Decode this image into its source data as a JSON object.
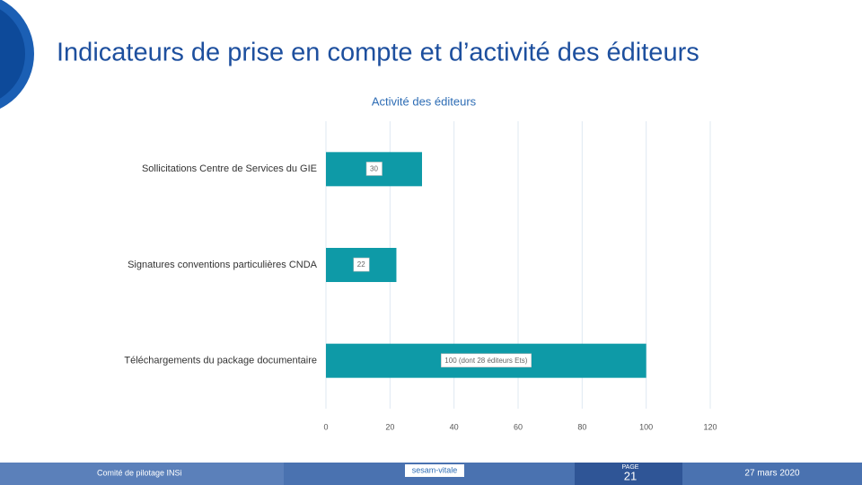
{
  "slide": {
    "title": "Indicateurs de prise en compte et d’activité des éditeurs"
  },
  "chart_data": {
    "type": "bar",
    "orientation": "horizontal",
    "title": "Activité des éditeurs",
    "categories": [
      "Sollicitations Centre de Services du GIE",
      "Signatures conventions particulières CNDA",
      "Téléchargements du package documentaire"
    ],
    "values": [
      30,
      22,
      100
    ],
    "value_labels": [
      "30",
      "22",
      "100 (dont 28 éditeurs Ets)"
    ],
    "color": "#0e9aa7",
    "xlim": [
      0,
      120
    ],
    "xticks": [
      0,
      20,
      40,
      60,
      80,
      100,
      120
    ],
    "grid": true
  },
  "footer": {
    "left": "Comité de pilotage INSi",
    "logo": "sesam-vitale",
    "page_label": "PAGE",
    "page_number": "21",
    "date": "27 mars 2020"
  }
}
